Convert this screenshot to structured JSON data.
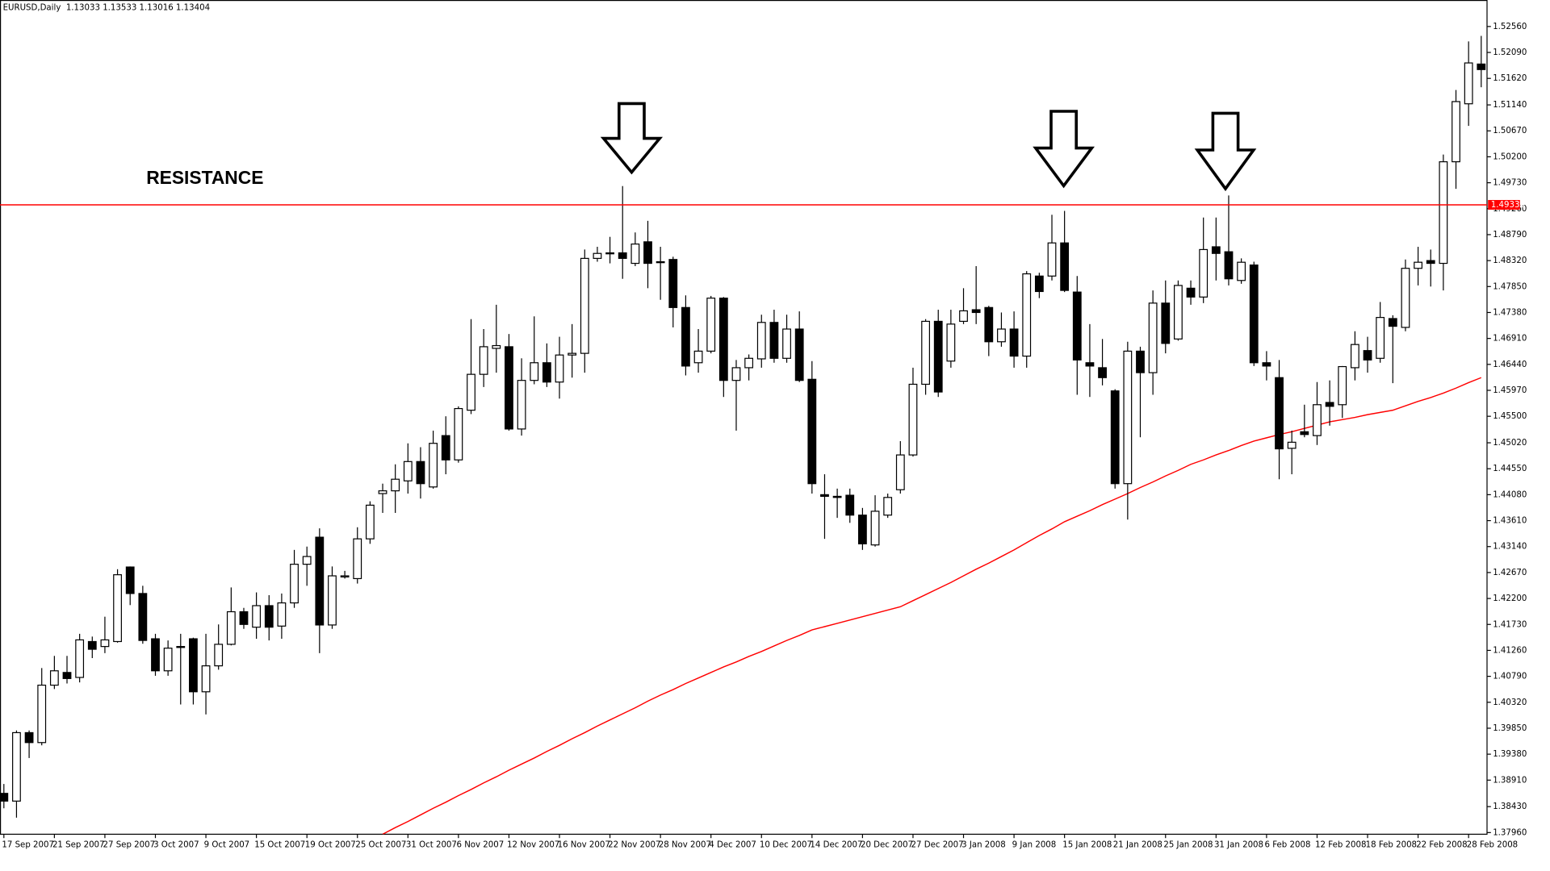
{
  "chart_data": {
    "type": "candlestick",
    "title": "EURUSD,Daily  1.13033 1.13533 1.13016 1.13404",
    "annotation": "RESISTANCE",
    "categories": [
      "17 Sep 2007",
      null,
      null,
      null,
      "21 Sep 2007",
      null,
      null,
      null,
      "27 Sep 2007",
      null,
      null,
      null,
      "3 Oct 2007",
      null,
      null,
      null,
      "9 Oct 2007",
      null,
      null,
      null,
      "15 Oct 2007",
      null,
      null,
      null,
      "19 Oct 2007",
      null,
      null,
      null,
      "25 Oct 2007",
      null,
      null,
      null,
      "31 Oct 2007",
      null,
      null,
      null,
      "6 Nov 2007",
      null,
      null,
      null,
      "12 Nov 2007",
      null,
      null,
      null,
      "16 Nov 2007",
      null,
      null,
      null,
      "22 Nov 2007",
      null,
      null,
      null,
      "28 Nov 2007",
      null,
      null,
      null,
      "4 Dec 2007",
      null,
      null,
      null,
      "10 Dec 2007",
      null,
      null,
      null,
      "14 Dec 2007",
      null,
      null,
      null,
      "20 Dec 2007",
      null,
      null,
      null,
      "27 Dec 2007",
      null,
      null,
      null,
      "3 Jan 2008",
      null,
      null,
      null,
      "9 Jan 2008",
      null,
      null,
      null,
      "15 Jan 2008",
      null,
      null,
      null,
      "21 Jan 2008",
      null,
      null,
      null,
      "25 Jan 2008",
      null,
      null,
      null,
      "31 Jan 2008",
      null,
      null,
      null,
      "6 Feb 2008",
      null,
      null,
      null,
      "12 Feb 2008",
      null,
      null,
      null,
      "18 Feb 2008",
      null,
      null,
      null,
      "22 Feb 2008",
      null,
      null,
      null,
      "28 Feb 2008",
      null
    ],
    "open": [
      1.3867,
      1.3853,
      1.3977,
      1.3959,
      1.4063,
      1.4086,
      1.4077,
      1.4142,
      1.4133,
      1.4142,
      1.4277,
      1.4229,
      1.4147,
      1.4089,
      1.4133,
      1.4147,
      1.4051,
      1.4098,
      1.4137,
      1.4196,
      1.4168,
      1.4207,
      1.417,
      1.4212,
      1.4282,
      1.4331,
      1.4172,
      1.4259,
      1.4256,
      1.4328,
      1.441,
      1.4415,
      1.4433,
      1.4468,
      1.4422,
      1.4515,
      1.4471,
      1.4561,
      1.4626,
      1.4673,
      1.4676,
      1.4527,
      1.4615,
      1.4647,
      1.4612,
      1.4661,
      1.4664,
      1.4836,
      1.4845,
      1.4846,
      1.4827,
      1.4866,
      1.483,
      1.4834,
      1.4747,
      1.4647,
      1.4668,
      1.4764,
      1.4615,
      1.4638,
      1.4654,
      1.472,
      1.4655,
      1.4708,
      1.4617,
      1.4408,
      1.4405,
      1.4407,
      1.4371,
      1.4317,
      1.4371,
      1.4417,
      1.448,
      1.4608,
      1.4722,
      1.465,
      1.4722,
      1.4743,
      1.4747,
      1.4685,
      1.4708,
      1.4659,
      1.4804,
      1.4804,
      1.4864,
      1.4775,
      1.4647,
      1.4638,
      1.4596,
      1.4428,
      1.4668,
      1.4629,
      1.4755,
      1.469,
      1.4782,
      1.4766,
      1.4857,
      1.4848,
      1.4796,
      1.4824,
      1.4647,
      1.462,
      1.4492,
      1.4522,
      1.4515,
      1.4575,
      1.4571,
      1.4638,
      1.4669,
      1.4655,
      1.4727,
      1.4711,
      1.4818,
      1.4832,
      1.4827,
      1.5011,
      1.5116,
      1.5188
    ],
    "high": [
      1.3884,
      1.3981,
      1.3981,
      1.4094,
      1.4116,
      1.4116,
      1.4156,
      1.4151,
      1.4187,
      1.4273,
      1.4278,
      1.4243,
      1.4156,
      1.4144,
      1.4156,
      1.4149,
      1.4156,
      1.4173,
      1.424,
      1.4203,
      1.4231,
      1.4226,
      1.4229,
      1.4308,
      1.4314,
      1.4347,
      1.4278,
      1.427,
      1.4349,
      1.4396,
      1.4428,
      1.4463,
      1.4501,
      1.4494,
      1.4524,
      1.455,
      1.4568,
      1.4726,
      1.4708,
      1.4752,
      1.4699,
      1.4655,
      1.4731,
      1.4682,
      1.4694,
      1.4717,
      1.4852,
      1.4857,
      1.4875,
      1.4967,
      1.4883,
      1.4904,
      1.4857,
      1.4839,
      1.4769,
      1.4708,
      1.4768,
      1.4766,
      1.4652,
      1.4662,
      1.4734,
      1.4743,
      1.4734,
      1.474,
      1.465,
      1.4445,
      1.4419,
      1.4419,
      1.4384,
      1.4407,
      1.441,
      1.4505,
      1.4638,
      1.4726,
      1.4743,
      1.4743,
      1.4782,
      1.4822,
      1.475,
      1.4738,
      1.474,
      1.4813,
      1.481,
      1.4915,
      1.4922,
      1.4804,
      1.4717,
      1.469,
      1.4599,
      1.4685,
      1.4676,
      1.4778,
      1.4796,
      1.4796,
      1.4796,
      1.491,
      1.491,
      1.495,
      1.4836,
      1.483,
      1.4668,
      1.4652,
      1.4524,
      1.4571,
      1.4612,
      1.4615,
      1.4641,
      1.4704,
      1.4694,
      1.4757,
      1.4733,
      1.4834,
      1.4857,
      1.4852,
      1.5024,
      1.5141,
      1.5229,
      1.5239
    ],
    "low": [
      1.384,
      1.3823,
      1.3931,
      1.3954,
      1.4056,
      1.4066,
      1.4068,
      1.4112,
      1.4121,
      1.414,
      1.4208,
      1.4138,
      1.408,
      1.408,
      1.4028,
      1.4028,
      1.401,
      1.4091,
      1.4135,
      1.4165,
      1.4147,
      1.4144,
      1.4147,
      1.4203,
      1.4243,
      1.4121,
      1.4165,
      1.4256,
      1.4247,
      1.4319,
      1.4375,
      1.4375,
      1.441,
      1.4401,
      1.4419,
      1.4445,
      1.4466,
      1.4554,
      1.4603,
      1.4629,
      1.4524,
      1.4515,
      1.4608,
      1.4603,
      1.4582,
      1.462,
      1.4629,
      1.483,
      1.4827,
      1.4799,
      1.4822,
      1.4782,
      1.4761,
      1.4711,
      1.4624,
      1.4629,
      1.4664,
      1.4585,
      1.4524,
      1.4615,
      1.4638,
      1.4647,
      1.4647,
      1.4612,
      1.441,
      1.4328,
      1.4366,
      1.4357,
      1.4308,
      1.4314,
      1.4366,
      1.441,
      1.4477,
      1.4589,
      1.4585,
      1.4638,
      1.4717,
      1.4717,
      1.4659,
      1.4676,
      1.4638,
      1.4638,
      1.4764,
      1.4796,
      1.4775,
      1.4589,
      1.4585,
      1.4606,
      1.4419,
      1.4363,
      1.4512,
      1.4589,
      1.4664,
      1.4687,
      1.4752,
      1.4755,
      1.4796,
      1.4787,
      1.479,
      1.4641,
      1.4615,
      1.4436,
      1.4445,
      1.4512,
      1.4498,
      1.4533,
      1.4547,
      1.4615,
      1.4629,
      1.4647,
      1.461,
      1.4704,
      1.4787,
      1.4785,
      1.4778,
      1.4962,
      1.5076,
      1.5146
    ],
    "close": [
      1.3853,
      1.3977,
      1.3959,
      1.4063,
      1.4089,
      1.4075,
      1.4145,
      1.4128,
      1.4145,
      1.4263,
      1.4229,
      1.4144,
      1.4089,
      1.413,
      1.4132,
      1.4051,
      1.4098,
      1.4137,
      1.4196,
      1.4173,
      1.4207,
      1.4168,
      1.4212,
      1.4282,
      1.4296,
      1.4172,
      1.4261,
      1.4261,
      1.4328,
      1.4389,
      1.4415,
      1.4436,
      1.4468,
      1.4428,
      1.4501,
      1.4471,
      1.4564,
      1.4626,
      1.4676,
      1.4678,
      1.4527,
      1.4615,
      1.4647,
      1.4612,
      1.4661,
      1.4664,
      1.4836,
      1.4845,
      1.4846,
      1.4836,
      1.4862,
      1.4827,
      1.4829,
      1.4747,
      1.4641,
      1.4668,
      1.4764,
      1.4615,
      1.4638,
      1.4655,
      1.472,
      1.4655,
      1.4708,
      1.4615,
      1.4428,
      1.4405,
      1.4403,
      1.4371,
      1.4319,
      1.4378,
      1.4403,
      1.448,
      1.4608,
      1.4722,
      1.4594,
      1.4717,
      1.4741,
      1.4738,
      1.4685,
      1.4708,
      1.4659,
      1.4808,
      1.4776,
      1.4864,
      1.4778,
      1.4652,
      1.4641,
      1.462,
      1.4428,
      1.4668,
      1.4629,
      1.4755,
      1.4682,
      1.4787,
      1.4766,
      1.4852,
      1.4845,
      1.4799,
      1.4829,
      1.4647,
      1.4641,
      1.4491,
      1.4503,
      1.4517,
      1.4571,
      1.4568,
      1.464,
      1.468,
      1.4652,
      1.4729,
      1.4713,
      1.4818,
      1.4829,
      1.4827,
      1.5011,
      1.512,
      1.519,
      1.5178
    ],
    "up_color": "#ffffff",
    "down_color": "#000000",
    "moving_average": {
      "color": "#ff0000",
      "values": [
        null,
        null,
        null,
        null,
        null,
        null,
        null,
        null,
        null,
        null,
        null,
        null,
        null,
        null,
        null,
        null,
        null,
        null,
        null,
        null,
        null,
        null,
        null,
        null,
        null,
        null,
        null,
        null,
        null,
        null,
        1.3793,
        1.3805,
        1.3816,
        1.3828,
        1.384,
        1.3851,
        1.3863,
        1.3874,
        1.3886,
        1.3897,
        1.3909,
        1.392,
        1.3931,
        1.3943,
        1.3954,
        1.3966,
        1.3977,
        1.3989,
        1.4,
        1.4011,
        1.4022,
        1.4034,
        1.4045,
        1.4055,
        1.4066,
        1.4076,
        1.4086,
        1.4096,
        1.4105,
        1.4115,
        1.4124,
        1.4134,
        1.4144,
        1.4153,
        1.4163,
        1.4169,
        1.4175,
        1.4181,
        1.4187,
        1.4193,
        1.4199,
        1.4205,
        1.4216,
        1.4227,
        1.4238,
        1.4249,
        1.4261,
        1.4273,
        1.4284,
        1.4296,
        1.4308,
        1.4321,
        1.4334,
        1.4346,
        1.4359,
        1.4369,
        1.4379,
        1.439,
        1.44,
        1.441,
        1.4421,
        1.4431,
        1.4442,
        1.4452,
        1.4463,
        1.4471,
        1.448,
        1.4488,
        1.4497,
        1.4505,
        1.4511,
        1.4517,
        1.4522,
        1.4528,
        1.4534,
        1.454,
        1.4544,
        1.4548,
        1.4553,
        1.4557,
        1.4561,
        1.4569,
        1.4577,
        1.4584,
        1.4592,
        1.4601,
        1.4611,
        1.462
      ]
    },
    "resistance": {
      "value": 1.4933,
      "label": "1.49330",
      "color": "#ff0000"
    },
    "ylim": [
      1.3793,
      1.5304
    ],
    "yticks": [
      {
        "value": 1.5256,
        "label": "1.52560"
      },
      {
        "value": 1.5209,
        "label": "1.52090"
      },
      {
        "value": 1.5162,
        "label": "1.51620"
      },
      {
        "value": 1.5114,
        "label": "1.51140"
      },
      {
        "value": 1.5067,
        "label": "1.50670"
      },
      {
        "value": 1.502,
        "label": "1.50200"
      },
      {
        "value": 1.4973,
        "label": "1.49730"
      },
      {
        "value": 1.4926,
        "label": "1.49260"
      },
      {
        "value": 1.4879,
        "label": "1.48790"
      },
      {
        "value": 1.4832,
        "label": "1.48320"
      },
      {
        "value": 1.4785,
        "label": "1.47850"
      },
      {
        "value": 1.4738,
        "label": "1.47380"
      },
      {
        "value": 1.4691,
        "label": "1.46910"
      },
      {
        "value": 1.4644,
        "label": "1.46440"
      },
      {
        "value": 1.4597,
        "label": "1.45970"
      },
      {
        "value": 1.455,
        "label": "1.45500"
      },
      {
        "value": 1.4502,
        "label": "1.45020"
      },
      {
        "value": 1.4455,
        "label": "1.44550"
      },
      {
        "value": 1.4408,
        "label": "1.44080"
      },
      {
        "value": 1.4361,
        "label": "1.43610"
      },
      {
        "value": 1.4314,
        "label": "1.43140"
      },
      {
        "value": 1.4267,
        "label": "1.42670"
      },
      {
        "value": 1.422,
        "label": "1.42200"
      },
      {
        "value": 1.4173,
        "label": "1.41730"
      },
      {
        "value": 1.4126,
        "label": "1.41260"
      },
      {
        "value": 1.4079,
        "label": "1.40790"
      },
      {
        "value": 1.4032,
        "label": "1.40320"
      },
      {
        "value": 1.3985,
        "label": "1.39850"
      },
      {
        "value": 1.3938,
        "label": "1.39380"
      },
      {
        "value": 1.3891,
        "label": "1.38910"
      },
      {
        "value": 1.3843,
        "label": "1.38430"
      },
      {
        "value": 1.3796,
        "label": "1.37960"
      }
    ]
  }
}
